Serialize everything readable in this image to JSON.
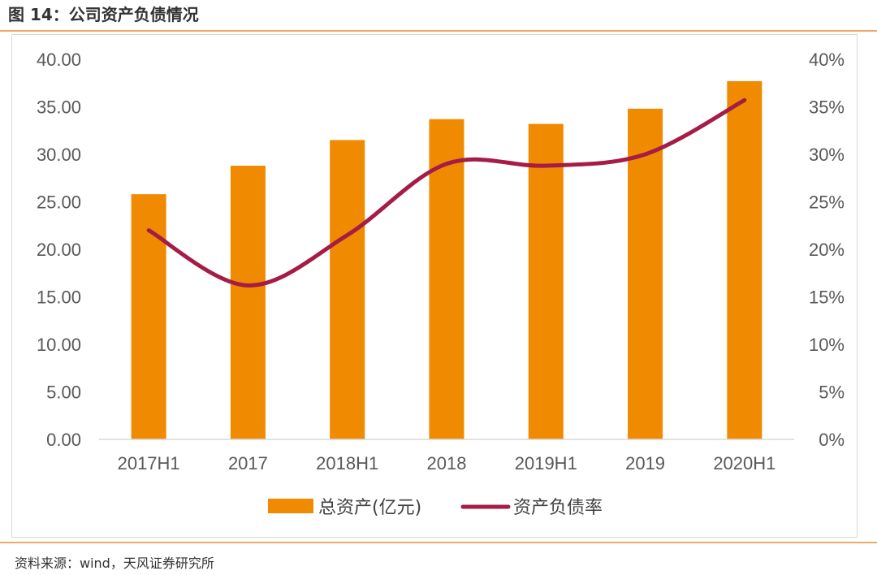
{
  "figure_title": "图 14：公司资产负债情况",
  "source_note": "资料来源：wind，天风证券研究所",
  "colors": {
    "bar": "#f08a00",
    "line": "#a51c46",
    "rule": "#f0a868"
  },
  "chart_data": {
    "type": "bar",
    "categories": [
      "2017H1",
      "2017",
      "2018H1",
      "2018",
      "2019H1",
      "2019",
      "2020H1"
    ],
    "series": [
      {
        "name": "总资产(亿元)",
        "type": "bar",
        "axis": "left",
        "values": [
          25.8,
          28.8,
          31.5,
          33.7,
          33.2,
          34.8,
          37.7
        ]
      },
      {
        "name": "资产负债率",
        "type": "line",
        "axis": "right",
        "smooth": true,
        "values": [
          0.22,
          0.162,
          0.215,
          0.29,
          0.288,
          0.3,
          0.357
        ]
      }
    ],
    "y_left": {
      "min": 0,
      "max": 40,
      "step": 5,
      "tick_labels": [
        "0.00",
        "5.00",
        "10.00",
        "15.00",
        "20.00",
        "25.00",
        "30.00",
        "35.00",
        "40.00"
      ]
    },
    "y_right": {
      "min": 0,
      "max": 0.4,
      "step": 0.05,
      "tick_labels": [
        "0%",
        "5%",
        "10%",
        "15%",
        "20%",
        "25%",
        "30%",
        "35%",
        "40%"
      ]
    },
    "grid": false,
    "legend_position": "bottom"
  }
}
